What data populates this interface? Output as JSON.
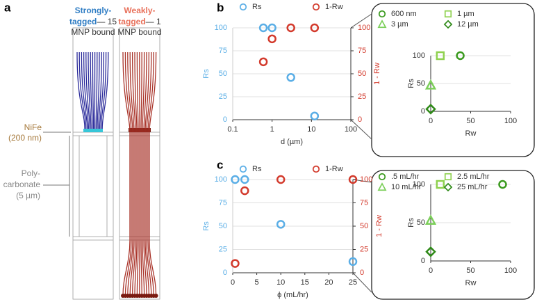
{
  "panel_labels": [
    "a",
    "b",
    "c"
  ],
  "diagram": {
    "strong": {
      "line1": "Strongly-",
      "line2": "tagged",
      "count": "— 15",
      "line3": "MNP bound"
    },
    "weak": {
      "line1": "Weakly-",
      "line2": "tagged",
      "count": "— 1",
      "line3": "MNP bound"
    },
    "nife": [
      "NiFe",
      "(200 nm)"
    ],
    "polycarbonate": [
      "Poly-",
      "carbonate",
      "(5 µm)"
    ]
  },
  "chart_data": [
    {
      "type": "scatter",
      "xlabel": "d (µm)",
      "ylabel": "Rs",
      "y2label": "1 - Rw",
      "xscale": "log",
      "xlim": [
        0.1,
        100
      ],
      "xticks": [
        0.1,
        1,
        10,
        100
      ],
      "ylim": [
        0,
        100
      ],
      "yticks": [
        0,
        25,
        50,
        75,
        100
      ],
      "y2lim": [
        0,
        100
      ],
      "y2ticks": [
        0,
        25,
        50,
        75,
        100
      ],
      "grid": true,
      "series": [
        {
          "name": "Rs",
          "color": "#5aaee6",
          "marker": "circle",
          "x": [
            0.6,
            1,
            3,
            12
          ],
          "values": [
            100,
            100,
            46,
            4
          ]
        },
        {
          "name": "1-Rw",
          "color": "#d33a2c",
          "marker": "circle",
          "axis": "y2",
          "x": [
            0.6,
            1,
            3,
            12
          ],
          "values": [
            63,
            88,
            100,
            100
          ]
        }
      ]
    },
    {
      "type": "scatter",
      "xlabel": "Rw",
      "ylabel": "Rs",
      "xlim": [
        0,
        100
      ],
      "xticks": [
        0,
        50,
        100
      ],
      "ylim": [
        0,
        100
      ],
      "yticks": [
        0,
        50,
        100
      ],
      "grid": true,
      "series": [
        {
          "name": "600 nm",
          "color": "#3a9a1e",
          "marker": "circle",
          "x": [
            37
          ],
          "values": [
            100
          ]
        },
        {
          "name": "1 µm",
          "color": "#8fd14f",
          "marker": "square",
          "x": [
            12
          ],
          "values": [
            100
          ]
        },
        {
          "name": "3 µm",
          "color": "#7ccf5a",
          "marker": "triangle",
          "x": [
            0
          ],
          "values": [
            47
          ]
        },
        {
          "name": "12 µm",
          "color": "#2f8a18",
          "marker": "diamond",
          "x": [
            0
          ],
          "values": [
            4
          ]
        }
      ]
    },
    {
      "type": "scatter",
      "xlabel": "ϕ (mL/hr)",
      "ylabel": "Rs",
      "y2label": "1 - Rw",
      "xlim": [
        0,
        25
      ],
      "xticks": [
        0,
        5,
        10,
        15,
        20,
        25
      ],
      "ylim": [
        0,
        100
      ],
      "yticks": [
        0,
        25,
        50,
        75,
        100
      ],
      "y2lim": [
        0,
        100
      ],
      "y2ticks": [
        0,
        25,
        50,
        75,
        100
      ],
      "grid": true,
      "series": [
        {
          "name": "Rs",
          "color": "#5aaee6",
          "marker": "circle",
          "x": [
            0.5,
            2.5,
            10,
            25
          ],
          "values": [
            100,
            100,
            52,
            12
          ]
        },
        {
          "name": "1-Rw",
          "color": "#d33a2c",
          "marker": "circle",
          "axis": "y2",
          "x": [
            0.5,
            2.5,
            10,
            25
          ],
          "values": [
            10,
            88,
            100,
            100
          ]
        }
      ]
    },
    {
      "type": "scatter",
      "xlabel": "Rw",
      "ylabel": "Rs",
      "xlim": [
        0,
        100
      ],
      "xticks": [
        0,
        50,
        100
      ],
      "ylim": [
        0,
        100
      ],
      "yticks": [
        0,
        50,
        100
      ],
      "grid": true,
      "series": [
        {
          "name": ".5 mL/hr",
          "color": "#3a9a1e",
          "marker": "circle",
          "x": [
            90
          ],
          "values": [
            100
          ]
        },
        {
          "name": "2.5 mL/hr",
          "color": "#8fd14f",
          "marker": "square",
          "x": [
            12
          ],
          "values": [
            100
          ]
        },
        {
          "name": "10 mL/hr",
          "color": "#7ccf5a",
          "marker": "triangle",
          "x": [
            0
          ],
          "values": [
            53
          ]
        },
        {
          "name": "25 mL/hr",
          "color": "#2f8a18",
          "marker": "diamond",
          "x": [
            0
          ],
          "values": [
            12
          ]
        }
      ]
    }
  ]
}
